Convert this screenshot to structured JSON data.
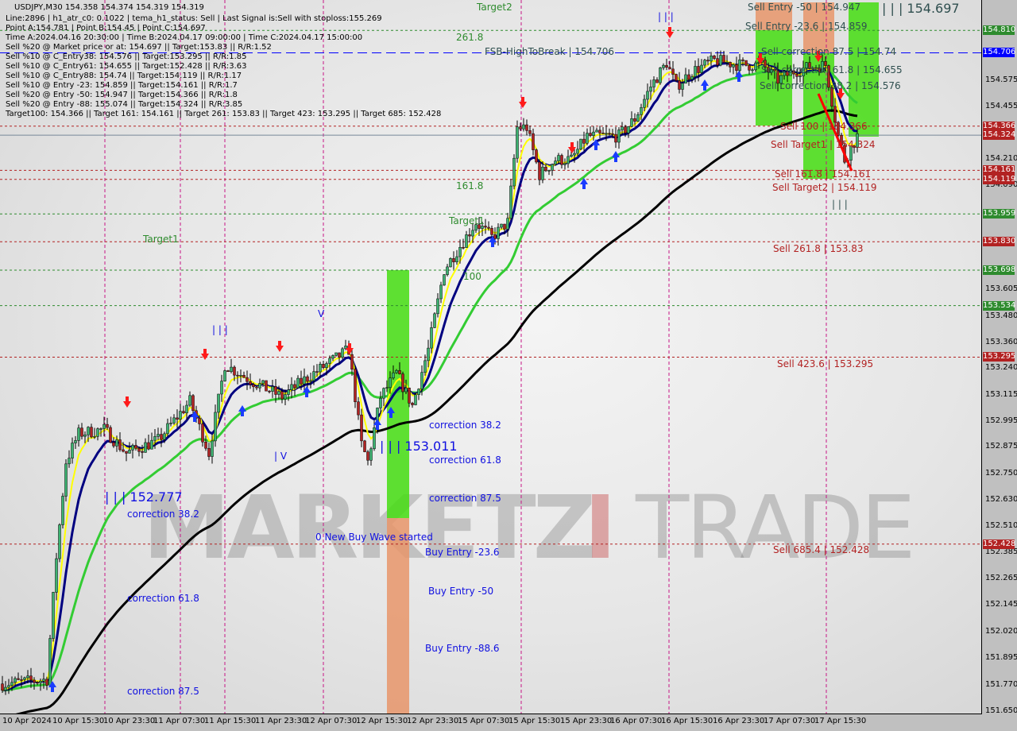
{
  "header": {
    "title": "USDJPY,M30  154.358 154.374 154.319 154.319",
    "lines": [
      "Line:2896 | h1_atr_c0: 0.1022 | tema_h1_status: Sell | Last Signal is:Sell with stoploss:155.269",
      "Point A:154.781 | Point B:154.45 | Point C:154.697",
      "Time A:2024.04.16 20:30:00 | Time B:2024.04.17 09:00:00 | Time C:2024.04.17 15:00:00",
      "Sell %20 @ Market price or at: 154.697 || Target:153.83 || R/R:1.52",
      "Sell %10 @ C_Entry38: 154.576 || Target:153.295 || R/R:1.85",
      "Sell %10 @ C_Entry61: 154.655 || Target:152.428 || R/R:3.63",
      "Sell %10 @ C_Entry88: 154.74 || Target:154.119 || R/R:1.17",
      "Sell %10 @ Entry -23: 154.859 || Target:154.161 || R/R:1.7",
      "Sell %20 @ Entry -50: 154.947 || Target:154.366 || R/R:1.8",
      "Sell %20 @ Entry -88: 155.074 || Target:154.324 || R/R:3.85",
      "Target100: 154.366 || Target 161: 154.161 || Target 261: 153.83 || Target 423: 153.295 || Target 685: 152.428"
    ]
  },
  "watermark": {
    "left": "MARKETZ",
    "mid": "I",
    "right": "TRADE"
  },
  "annotations": [
    "Sell Entry -50 | 154.947",
    "| | | 154.697",
    "Sell Entry -23.6 | 154.859",
    "Sell correction 87.5 | 154.74",
    "Sell correction 61.8 | 154.655",
    "Sell correction 38.2 | 154.576",
    "Sell 100 | 154.366",
    "Sell Target1 | 154.324",
    "Sell 161.8 | 154.161",
    "Sell Target2 | 154.119",
    "Sell 261.8 | 153.83",
    "Sell 423.6 | 153.295",
    "Sell 685.4 | 152.428",
    "261.8",
    "161.8",
    "100",
    "Target1",
    "Target2",
    "Target1",
    "FSB-HighToBreak | 154.706",
    "| | | 152.777",
    "correction 38.2",
    "correction 61.8",
    "correction 87.5",
    "| | | 153.011",
    "correction 38.2",
    "correction 61.8",
    "correction 87.5",
    "0 New Buy Wave started",
    "Buy Entry -23.6",
    "Buy Entry -50",
    "Buy Entry -88.6",
    "| | |",
    "| V",
    "V",
    "| | |",
    "| | |"
  ],
  "chart_data": {
    "type": "candlestick",
    "symbol": "USDJPY",
    "timeframe": "M30",
    "ylim": [
      151.65,
      154.95
    ],
    "y_ticks": [
      "154.575",
      "154.455",
      "154.210",
      "154.090",
      "153.605",
      "153.480",
      "153.360",
      "153.240",
      "153.115",
      "152.995",
      "152.875",
      "152.750",
      "152.630",
      "152.510",
      "152.385",
      "152.265",
      "152.145",
      "152.020",
      "151.895",
      "151.770",
      "151.650"
    ],
    "x_ticks": [
      "10 Apr 2024",
      "10 Apr 15:30",
      "10 Apr 23:30",
      "11 Apr 07:30",
      "11 Apr 15:30",
      "11 Apr 23:30",
      "12 Apr 07:30",
      "12 Apr 15:30",
      "12 Apr 23:30",
      "15 Apr 07:30",
      "15 Apr 15:30",
      "15 Apr 23:30",
      "16 Apr 07:30",
      "16 Apr 15:30",
      "16 Apr 23:30",
      "17 Apr 07:30",
      "17 Apr 15:30"
    ],
    "price_path": [
      [
        "10 Apr 07:30",
        151.78
      ],
      [
        "10 Apr 14:30",
        151.8
      ],
      [
        "10 Apr 16:00",
        152.37
      ],
      [
        "10 Apr 17:30",
        152.81
      ],
      [
        "10 Apr 19:30",
        152.94
      ],
      [
        "10 Apr 23:30",
        152.96
      ],
      [
        "11 Apr 03:00",
        152.85
      ],
      [
        "11 Apr 08:00",
        152.91
      ],
      [
        "11 Apr 13:00",
        153.09
      ],
      [
        "11 Apr 16:00",
        152.85
      ],
      [
        "11 Apr 18:30",
        153.26
      ],
      [
        "11 Apr 23:00",
        153.18
      ],
      [
        "12 Apr 03:30",
        153.11
      ],
      [
        "12 Apr 06:30",
        153.18
      ],
      [
        "12 Apr 10:30",
        153.26
      ],
      [
        "12 Apr 14:00",
        153.33
      ],
      [
        "12 Apr 16:00",
        152.89
      ],
      [
        "12 Apr 17:00",
        152.81
      ],
      [
        "12 Apr 19:00",
        153.11
      ],
      [
        "12 Apr 21:30",
        153.22
      ],
      [
        "15 Apr 00:00",
        153.07
      ],
      [
        "15 Apr 02:30",
        153.33
      ],
      [
        "15 Apr 05:00",
        153.7
      ],
      [
        "15 Apr 07:30",
        153.81
      ],
      [
        "15 Apr 10:00",
        153.92
      ],
      [
        "15 Apr 12:30",
        153.85
      ],
      [
        "15 Apr 15:00",
        153.92
      ],
      [
        "15 Apr 16:30",
        154.36
      ],
      [
        "15 Apr 18:00",
        154.36
      ],
      [
        "15 Apr 20:00",
        154.14
      ],
      [
        "15 Apr 22:30",
        154.21
      ],
      [
        "16 Apr 01:00",
        154.21
      ],
      [
        "16 Apr 03:30",
        154.32
      ],
      [
        "16 Apr 06:00",
        154.32
      ],
      [
        "16 Apr 08:30",
        154.32
      ],
      [
        "16 Apr 11:00",
        154.4
      ],
      [
        "16 Apr 13:30",
        154.55
      ],
      [
        "16 Apr 16:00",
        154.66
      ],
      [
        "16 Apr 17:30",
        154.55
      ],
      [
        "16 Apr 20:00",
        154.62
      ],
      [
        "16 Apr 23:30",
        154.67
      ],
      [
        "17 Apr 03:30",
        154.65
      ],
      [
        "17 Apr 07:00",
        154.65
      ],
      [
        "17 Apr 09:30",
        154.58
      ],
      [
        "17 Apr 12:00",
        154.62
      ],
      [
        "17 Apr 14:30",
        154.64
      ],
      [
        "17 Apr 17:00",
        154.65
      ],
      [
        "17 Apr 19:00",
        154.32
      ],
      [
        "17 Apr 20:00",
        154.21
      ],
      [
        "17 Apr 22:00",
        154.32
      ]
    ],
    "levels": [
      {
        "price": "154.810",
        "color": "#2e8b2e",
        "style": "dashed"
      },
      {
        "price": "154.706",
        "color": "#0000ff",
        "style": "longdash"
      },
      {
        "price": "154.366",
        "color": "#b22222",
        "style": "dashed"
      },
      {
        "price": "154.324",
        "color": "#778899",
        "style": "solid"
      },
      {
        "price": "154.161",
        "color": "#b22222",
        "style": "dashed"
      },
      {
        "price": "154.119",
        "color": "#b22222",
        "style": "dashed"
      },
      {
        "price": "153.959",
        "color": "#2e8b2e",
        "style": "dashed"
      },
      {
        "price": "153.830",
        "color": "#b22222",
        "style": "dashed"
      },
      {
        "price": "153.698",
        "color": "#2e8b2e",
        "style": "dashed"
      },
      {
        "price": "153.534",
        "color": "#2e8b2e",
        "style": "dashed"
      },
      {
        "price": "153.295",
        "color": "#b22222",
        "style": "dashed"
      },
      {
        "price": "152.428",
        "color": "#b22222",
        "style": "dashed"
      }
    ],
    "moving_averages": [
      {
        "color": "#000000",
        "period": 90
      },
      {
        "color": "#33cc33",
        "period": 30
      },
      {
        "color": "#000080",
        "period": 10
      },
      {
        "color": "#ffff00",
        "period": 5
      }
    ],
    "colors": {
      "bull": "#3cb371",
      "bear": "#b22222",
      "buy_zone": "#44dd11",
      "entry_zone": "#e8956a",
      "up_arrow": "#1a3cff",
      "down_arrow": "#ff1a1a"
    }
  }
}
